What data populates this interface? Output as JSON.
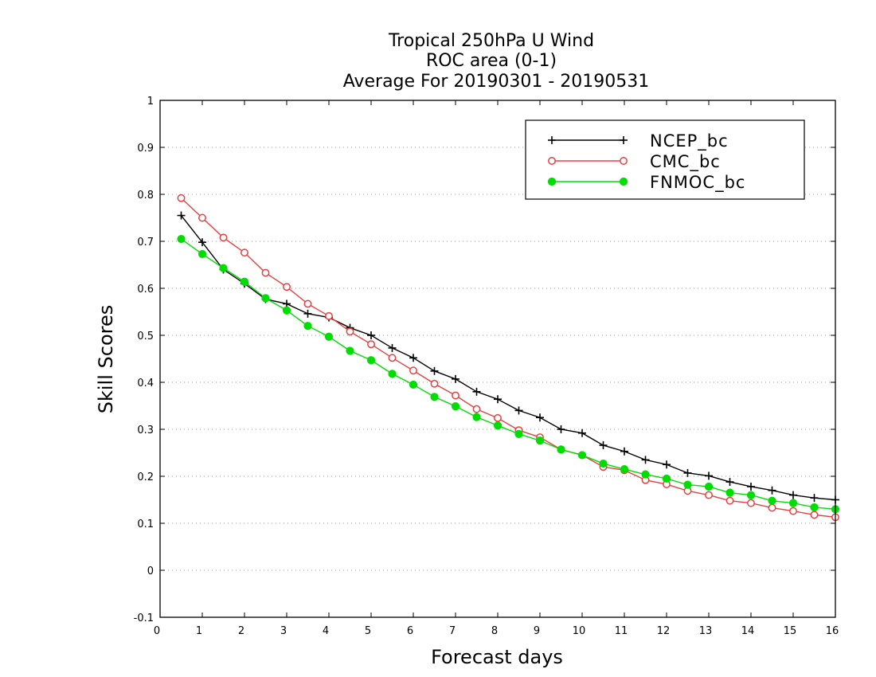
{
  "chart_data": {
    "type": "line",
    "title": [
      "Tropical 250hPa U Wind",
      "ROC area (0-1)",
      "Average For 20190301 - 20190531"
    ],
    "xlabel": "Forecast days",
    "ylabel": "Skill Scores",
    "xlim": [
      0,
      16
    ],
    "ylim": [
      -0.1,
      1
    ],
    "xticks": [
      "0",
      "1",
      "2",
      "3",
      "4",
      "5",
      "6",
      "7",
      "8",
      "9",
      "10",
      "11",
      "12",
      "13",
      "14",
      "15",
      "16"
    ],
    "yticks": [
      "-0.1",
      "0",
      "0.1",
      "0.2",
      "0.3",
      "0.4",
      "0.5",
      "0.6",
      "0.7",
      "0.8",
      "0.9",
      "1"
    ],
    "grid": true,
    "legend_position": "top-right",
    "x": [
      0.5,
      1,
      1.5,
      2,
      2.5,
      3,
      3.5,
      4,
      4.5,
      5,
      5.5,
      6,
      6.5,
      7,
      7.5,
      8,
      8.5,
      9,
      9.5,
      10,
      10.5,
      11,
      11.5,
      12,
      12.5,
      13,
      13.5,
      14,
      14.5,
      15,
      15.5,
      16
    ],
    "series": [
      {
        "name": "NCEP_bc",
        "color": "#000000",
        "marker": "plus",
        "values": [
          0.755,
          0.698,
          0.64,
          0.61,
          0.577,
          0.567,
          0.546,
          0.538,
          0.516,
          0.5,
          0.473,
          0.452,
          0.424,
          0.407,
          0.38,
          0.364,
          0.34,
          0.325,
          0.3,
          0.292,
          0.266,
          0.253,
          0.235,
          0.225,
          0.207,
          0.201,
          0.188,
          0.178,
          0.17,
          0.16,
          0.154,
          0.15
        ]
      },
      {
        "name": "CMC_bc",
        "color": "#e84040",
        "marker": "open-circle",
        "values": [
          0.792,
          0.75,
          0.708,
          0.676,
          0.633,
          0.603,
          0.567,
          0.541,
          0.508,
          0.481,
          0.452,
          0.425,
          0.397,
          0.372,
          0.343,
          0.324,
          0.298,
          0.283,
          0.257,
          0.245,
          0.22,
          0.213,
          0.192,
          0.183,
          0.169,
          0.16,
          0.148,
          0.143,
          0.133,
          0.126,
          0.118,
          0.113
        ]
      },
      {
        "name": "FNMOC_bc",
        "color": "#00dd00",
        "marker": "filled-circle",
        "values": [
          0.705,
          0.673,
          0.643,
          0.614,
          0.579,
          0.553,
          0.52,
          0.497,
          0.467,
          0.447,
          0.418,
          0.395,
          0.369,
          0.349,
          0.326,
          0.308,
          0.29,
          0.276,
          0.257,
          0.245,
          0.227,
          0.215,
          0.204,
          0.195,
          0.182,
          0.178,
          0.165,
          0.16,
          0.148,
          0.143,
          0.134,
          0.13
        ]
      }
    ]
  }
}
